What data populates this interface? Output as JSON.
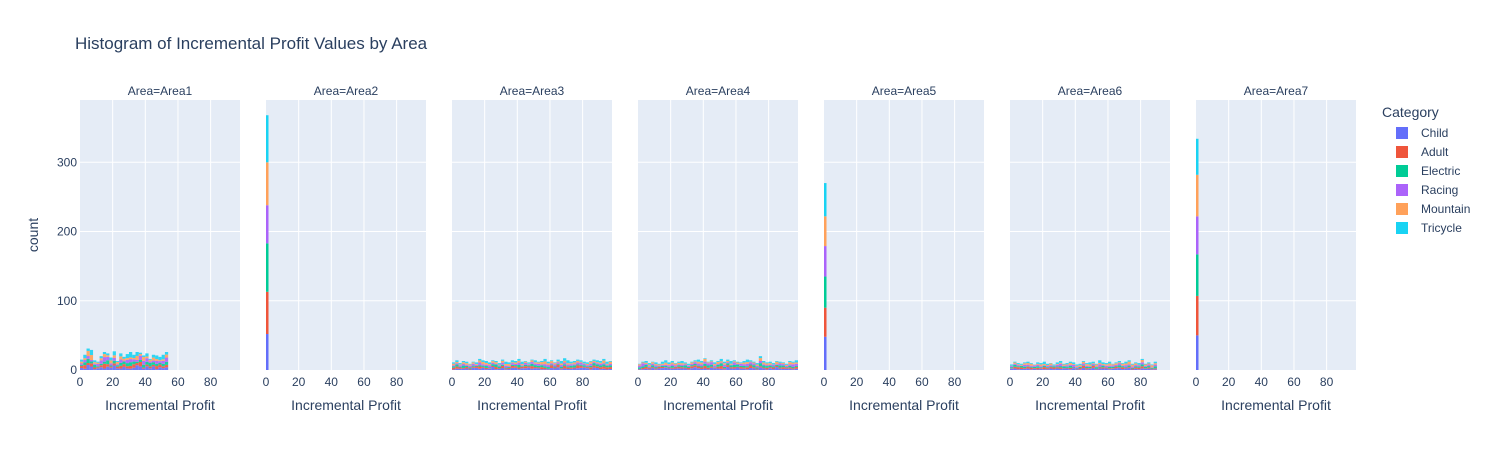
{
  "chart_data": {
    "type": "bar",
    "title": "Histogram of Incremental Profit Values by Area",
    "ylabel": "count",
    "xlabel": "Incremental Profit",
    "legend_title": "Category",
    "legend_placement": "right",
    "ylim": [
      0,
      390
    ],
    "xlim": [
      0,
      98
    ],
    "y_ticks": [
      0,
      100,
      200,
      300
    ],
    "x_ticks": [
      0,
      20,
      40,
      60,
      80
    ],
    "colors": {
      "Child": "#636efa",
      "Adult": "#EF553B",
      "Electric": "#00cc96",
      "Racing": "#ab63fa",
      "Mountain": "#FFA15A",
      "Tricycle": "#19d3f3"
    },
    "categories": [
      "Child",
      "Adult",
      "Electric",
      "Racing",
      "Mountain",
      "Tricycle"
    ],
    "panels": [
      {
        "label": "Area=Area1",
        "bin_width": 2,
        "bins_x": [
          0,
          2,
          4,
          6,
          8,
          10,
          12,
          14,
          16,
          18,
          20,
          22,
          24,
          26,
          28,
          30,
          32,
          34,
          36,
          38,
          40,
          42,
          44,
          46,
          48,
          50,
          52
        ],
        "bins_total": [
          15,
          22,
          31,
          29,
          14,
          12,
          20,
          26,
          24,
          18,
          27,
          13,
          24,
          19,
          23,
          26,
          22,
          26,
          25,
          21,
          24,
          16,
          22,
          21,
          19,
          22,
          26
        ]
      },
      {
        "label": "Area=Area2",
        "bin_width": 2,
        "bins_x": [
          0
        ],
        "stacks": [
          [
            52,
            61,
            70,
            55,
            62,
            68
          ]
        ]
      },
      {
        "label": "Area=Area3",
        "bin_width": 2,
        "bins_x": [
          0,
          2,
          4,
          6,
          8,
          10,
          12,
          14,
          16,
          18,
          20,
          22,
          24,
          26,
          28,
          30,
          32,
          34,
          36,
          38,
          40,
          42,
          44,
          46,
          48,
          50,
          52,
          54,
          56,
          58,
          60,
          62,
          64,
          66,
          68,
          70,
          72,
          74,
          76,
          78,
          80,
          82,
          84,
          86,
          88,
          90,
          92,
          94,
          96
        ],
        "bins_total": [
          11,
          14,
          10,
          13,
          12,
          9,
          12,
          11,
          16,
          14,
          13,
          11,
          14,
          13,
          10,
          15,
          12,
          11,
          14,
          13,
          16,
          12,
          13,
          11,
          15,
          14,
          12,
          13,
          16,
          12,
          14,
          11,
          15,
          13,
          17,
          14,
          12,
          13,
          15,
          14,
          12,
          11,
          13,
          15,
          14,
          13,
          16,
          12,
          13
        ]
      },
      {
        "label": "Area=Area4",
        "bin_width": 2,
        "bins_x": [
          0,
          2,
          4,
          6,
          8,
          10,
          12,
          14,
          16,
          18,
          20,
          22,
          24,
          26,
          28,
          30,
          32,
          34,
          36,
          38,
          40,
          42,
          44,
          46,
          48,
          50,
          52,
          54,
          56,
          58,
          60,
          62,
          64,
          66,
          68,
          70,
          72,
          74,
          76,
          78,
          80,
          82,
          84,
          86,
          88,
          90,
          92,
          94,
          96
        ],
        "bins_total": [
          9,
          12,
          13,
          10,
          12,
          11,
          9,
          12,
          14,
          11,
          13,
          10,
          12,
          13,
          11,
          9,
          12,
          14,
          15,
          13,
          17,
          12,
          14,
          11,
          13,
          16,
          12,
          15,
          13,
          14,
          12,
          11,
          13,
          15,
          14,
          12,
          10,
          20,
          13,
          11,
          12,
          10,
          13,
          12,
          11,
          9,
          13,
          12,
          14
        ]
      },
      {
        "label": "Area=Area5",
        "bin_width": 2,
        "bins_x": [
          0
        ],
        "stacks": [
          [
            48,
            42,
            45,
            44,
            43,
            48
          ]
        ]
      },
      {
        "label": "Area=Area6",
        "bin_width": 2,
        "bins_x": [
          0,
          2,
          4,
          6,
          8,
          10,
          12,
          14,
          16,
          18,
          20,
          22,
          24,
          26,
          28,
          30,
          32,
          34,
          36,
          38,
          40,
          42,
          44,
          46,
          48,
          50,
          52,
          54,
          56,
          58,
          60,
          62,
          64,
          66,
          68,
          70,
          72,
          74,
          76,
          78,
          80,
          82,
          84,
          86,
          88
        ],
        "bins_total": [
          8,
          12,
          10,
          9,
          11,
          12,
          10,
          8,
          11,
          10,
          12,
          9,
          10,
          8,
          11,
          13,
          9,
          10,
          12,
          11,
          8,
          9,
          13,
          10,
          11,
          12,
          9,
          14,
          11,
          10,
          12,
          9,
          11,
          13,
          10,
          12,
          14,
          9,
          11,
          10,
          16,
          9,
          11,
          8,
          12
        ]
      },
      {
        "label": "Area=Area7",
        "bin_width": 2,
        "bins_x": [
          0
        ],
        "stacks": [
          [
            50,
            57,
            60,
            55,
            60,
            52
          ]
        ]
      }
    ]
  }
}
